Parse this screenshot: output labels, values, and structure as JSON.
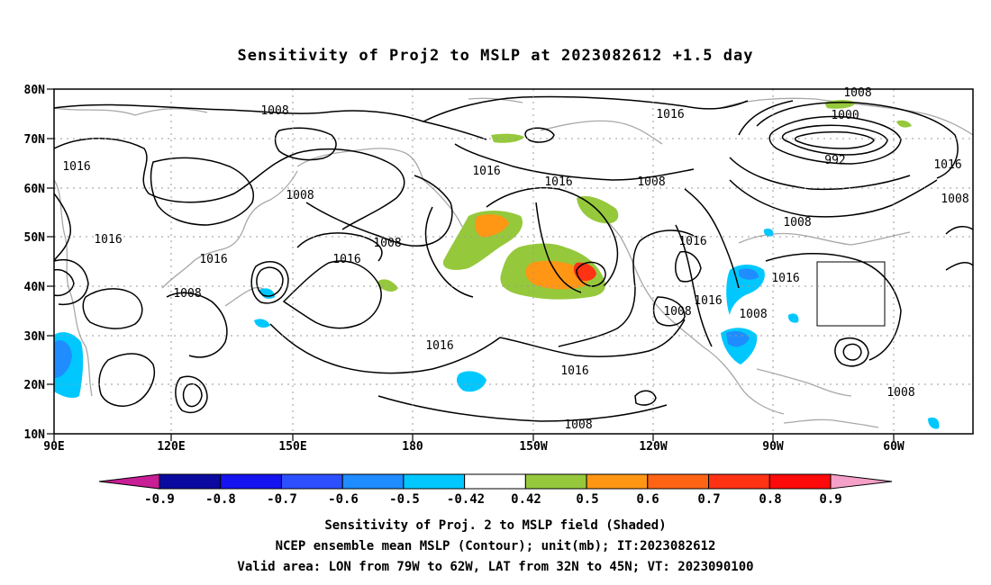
{
  "title": "Sensitivity of Proj2 to MSLP at 2023082612 +1.5 day",
  "lat_axis": [
    "80N",
    "70N",
    "60N",
    "50N",
    "40N",
    "30N",
    "20N",
    "10N"
  ],
  "lon_axis": [
    "90E",
    "120E",
    "150E",
    "180",
    "150W",
    "120W",
    "90W",
    "60W"
  ],
  "isobar_labels": [
    "1008",
    "1008",
    "1016",
    "1008",
    "1000",
    "992",
    "1016",
    "1016",
    "1008",
    "1008",
    "1016",
    "1008",
    "1008",
    "1016",
    "1016",
    "1008",
    "1016",
    "1016",
    "1008",
    "1016",
    "1016",
    "1008",
    "1016",
    "1016",
    "1008",
    "1016",
    "1008"
  ],
  "colorbar": {
    "ticks": [
      "-0.9",
      "-0.8",
      "-0.7",
      "-0.6",
      "-0.5",
      "-0.42",
      "0.42",
      "0.5",
      "0.6",
      "0.7",
      "0.8",
      "0.9"
    ],
    "colors": [
      "#0a0aa0",
      "#1414f0",
      "#2c50ff",
      "#1f8cff",
      "#00c8ff",
      "#ffffff",
      "#96c83c",
      "#ff9614",
      "#ff6414",
      "#ff3214",
      "#ff0a0a"
    ],
    "low_end_color": "#c81e96",
    "high_end_color": "#f5a0c8"
  },
  "captions": [
    "Sensitivity of Proj. 2 to MSLP field (Shaded)",
    "NCEP ensemble mean MSLP (Contour); unit(mb); IT:2023082612",
    "Valid area: LON from 79W to 62W, LAT from 32N to 45N; VT: 2023090100"
  ]
}
